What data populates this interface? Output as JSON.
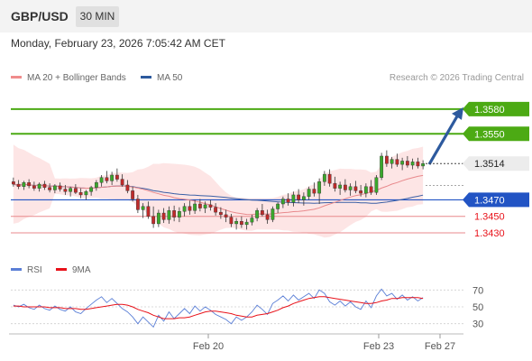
{
  "header": {
    "symbol": "GBP/USD",
    "timeframe": "30 MIN"
  },
  "datetime": "Monday, February 23, 2026 7:05:42 AM CET",
  "legend": {
    "items": [
      {
        "label": "MA 20 + Bollinger Bands",
        "color": "#f08c8c"
      },
      {
        "label": "MA 50",
        "color": "#2d5a9e"
      }
    ],
    "credit": "Research © 2026 Trading Central"
  },
  "rsi_legend": {
    "items": [
      {
        "label": "RSI",
        "color": "#5b7fd6"
      },
      {
        "label": "9MA",
        "color": "#e8121a"
      }
    ]
  },
  "chart_data": [
    {
      "type": "candlestick",
      "title": "GBP/USD 30 MIN",
      "ylim": [
        1.3395,
        1.3605
      ],
      "x_ticks": [
        "Feb 20",
        "Feb 23",
        "Feb 27"
      ],
      "current_price": {
        "label": "1.3514",
        "value": 1.3514
      },
      "levels": [
        {
          "label": "1.3580",
          "value": 1.358,
          "kind": "resistance"
        },
        {
          "label": "1.3550",
          "value": 1.355,
          "kind": "resistance"
        },
        {
          "label": "1.3470",
          "value": 1.347,
          "kind": "pivot"
        },
        {
          "label": "1.3450",
          "value": 1.345,
          "kind": "support"
        },
        {
          "label": "1.3430",
          "value": 1.343,
          "kind": "support"
        }
      ],
      "forecast": {
        "from": 1.3513,
        "to": 1.358
      },
      "candles": [
        [
          1.3492,
          1.3497,
          1.3486,
          1.3489
        ],
        [
          1.3489,
          1.3494,
          1.3483,
          1.3486
        ],
        [
          1.3486,
          1.3493,
          1.3482,
          1.3491
        ],
        [
          1.3491,
          1.3495,
          1.3484,
          1.3487
        ],
        [
          1.3487,
          1.3492,
          1.3481,
          1.3484
        ],
        [
          1.3484,
          1.3491,
          1.348,
          1.3489
        ],
        [
          1.3489,
          1.3493,
          1.3482,
          1.3485
        ],
        [
          1.3485,
          1.349,
          1.3479,
          1.3482
        ],
        [
          1.3482,
          1.3489,
          1.3478,
          1.3487
        ],
        [
          1.3487,
          1.3491,
          1.348,
          1.3483
        ],
        [
          1.3483,
          1.3488,
          1.3476,
          1.348
        ],
        [
          1.348,
          1.3486,
          1.3474,
          1.3484
        ],
        [
          1.3484,
          1.3489,
          1.3477,
          1.3479
        ],
        [
          1.3479,
          1.3484,
          1.3472,
          1.3476
        ],
        [
          1.3476,
          1.3482,
          1.347,
          1.348
        ],
        [
          1.348,
          1.3487,
          1.3475,
          1.3485
        ],
        [
          1.3485,
          1.3494,
          1.3481,
          1.3491
        ],
        [
          1.3491,
          1.35,
          1.3486,
          1.3497
        ],
        [
          1.3497,
          1.3505,
          1.349,
          1.3493
        ],
        [
          1.3493,
          1.3504,
          1.3488,
          1.35
        ],
        [
          1.35,
          1.3508,
          1.3492,
          1.3495
        ],
        [
          1.3495,
          1.3501,
          1.3486,
          1.3488
        ],
        [
          1.3488,
          1.3494,
          1.3478,
          1.3481
        ],
        [
          1.3481,
          1.3486,
          1.3468,
          1.3471
        ],
        [
          1.3471,
          1.3476,
          1.3454,
          1.3458
        ],
        [
          1.3458,
          1.3466,
          1.3448,
          1.3462
        ],
        [
          1.3462,
          1.3468,
          1.3447,
          1.345
        ],
        [
          1.345,
          1.3462,
          1.3436,
          1.3441
        ],
        [
          1.3441,
          1.3458,
          1.3437,
          1.3454
        ],
        [
          1.3454,
          1.346,
          1.3442,
          1.3446
        ],
        [
          1.3446,
          1.3462,
          1.3441,
          1.3457
        ],
        [
          1.3457,
          1.3463,
          1.3444,
          1.3449
        ],
        [
          1.3449,
          1.3461,
          1.3443,
          1.3456
        ],
        [
          1.3456,
          1.3466,
          1.345,
          1.3462
        ],
        [
          1.3462,
          1.3469,
          1.3452,
          1.3457
        ],
        [
          1.3457,
          1.347,
          1.3453,
          1.3465
        ],
        [
          1.3465,
          1.3471,
          1.3456,
          1.346
        ],
        [
          1.346,
          1.3468,
          1.3454,
          1.3464
        ],
        [
          1.3464,
          1.347,
          1.3457,
          1.3461
        ],
        [
          1.3461,
          1.3466,
          1.3451,
          1.3455
        ],
        [
          1.3455,
          1.3461,
          1.3447,
          1.3452
        ],
        [
          1.3452,
          1.3458,
          1.3443,
          1.3449
        ],
        [
          1.3449,
          1.3453,
          1.3437,
          1.3441
        ],
        [
          1.3441,
          1.3448,
          1.3434,
          1.3444
        ],
        [
          1.3444,
          1.345,
          1.3436,
          1.344
        ],
        [
          1.344,
          1.3447,
          1.3434,
          1.3443
        ],
        [
          1.3443,
          1.3452,
          1.3439,
          1.3448
        ],
        [
          1.3448,
          1.346,
          1.3444,
          1.3457
        ],
        [
          1.3457,
          1.3465,
          1.345,
          1.3452
        ],
        [
          1.3452,
          1.3458,
          1.3441,
          1.3446
        ],
        [
          1.3446,
          1.3462,
          1.3443,
          1.3459
        ],
        [
          1.3459,
          1.3467,
          1.3454,
          1.3465
        ],
        [
          1.3465,
          1.3474,
          1.346,
          1.3471
        ],
        [
          1.3471,
          1.3478,
          1.3463,
          1.3467
        ],
        [
          1.3467,
          1.348,
          1.3462,
          1.3476
        ],
        [
          1.3476,
          1.3483,
          1.3466,
          1.347
        ],
        [
          1.347,
          1.3479,
          1.3463,
          1.3474
        ],
        [
          1.3474,
          1.3486,
          1.347,
          1.3483
        ],
        [
          1.3483,
          1.3491,
          1.3474,
          1.3478
        ],
        [
          1.3478,
          1.3496,
          1.3465,
          1.3492
        ],
        [
          1.3492,
          1.3505,
          1.3487,
          1.3501
        ],
        [
          1.3501,
          1.3507,
          1.3486,
          1.349
        ],
        [
          1.349,
          1.3498,
          1.348,
          1.3484
        ],
        [
          1.3484,
          1.3492,
          1.3476,
          1.3488
        ],
        [
          1.3488,
          1.3495,
          1.3479,
          1.3482
        ],
        [
          1.3482,
          1.349,
          1.3475,
          1.3486
        ],
        [
          1.3486,
          1.3493,
          1.3478,
          1.3481
        ],
        [
          1.3481,
          1.3488,
          1.3474,
          1.3478
        ],
        [
          1.3478,
          1.349,
          1.3473,
          1.3486
        ],
        [
          1.3486,
          1.3494,
          1.3476,
          1.3479
        ],
        [
          1.3479,
          1.35,
          1.3476,
          1.3497
        ],
        [
          1.3497,
          1.3527,
          1.3494,
          1.3523
        ],
        [
          1.3523,
          1.353,
          1.351,
          1.3514
        ],
        [
          1.3514,
          1.3522,
          1.3508,
          1.3519
        ],
        [
          1.3519,
          1.3526,
          1.351,
          1.3513
        ],
        [
          1.3513,
          1.3521,
          1.3506,
          1.3517
        ],
        [
          1.3517,
          1.3523,
          1.3509,
          1.3512
        ],
        [
          1.3512,
          1.352,
          1.3507,
          1.3516
        ],
        [
          1.3516,
          1.3521,
          1.3508,
          1.3511
        ],
        [
          1.3511,
          1.3518,
          1.3507,
          1.3514
        ]
      ]
    },
    {
      "type": "line",
      "title": "RSI",
      "ylim": [
        20,
        80
      ],
      "y_ticks": [
        30,
        50,
        70
      ],
      "series": [
        {
          "name": "RSI",
          "values": [
            52,
            50,
            53,
            49,
            47,
            52,
            48,
            46,
            51,
            47,
            45,
            50,
            44,
            42,
            48,
            53,
            58,
            62,
            55,
            60,
            54,
            48,
            44,
            38,
            30,
            38,
            32,
            26,
            40,
            33,
            44,
            36,
            42,
            48,
            42,
            51,
            45,
            50,
            46,
            41,
            38,
            35,
            30,
            38,
            34,
            38,
            44,
            52,
            47,
            41,
            54,
            58,
            63,
            57,
            64,
            58,
            62,
            66,
            60,
            70,
            66,
            56,
            52,
            57,
            51,
            56,
            50,
            47,
            57,
            49,
            63,
            71,
            63,
            66,
            59,
            64,
            58,
            62,
            57,
            61
          ]
        },
        {
          "name": "9MA",
          "values": [
            51,
            51,
            50,
            50,
            50,
            50,
            50,
            49,
            49,
            49,
            48,
            48,
            48,
            47,
            47,
            48,
            49,
            50,
            51,
            52,
            53,
            53,
            52,
            50,
            47,
            45,
            43,
            40,
            38,
            36,
            36,
            36,
            37,
            37,
            38,
            40,
            42,
            44,
            45,
            45,
            44,
            43,
            42,
            40,
            39,
            38,
            38,
            40,
            41,
            42,
            44,
            46,
            49,
            51,
            54,
            56,
            58,
            60,
            61,
            62,
            62,
            61,
            60,
            59,
            58,
            57,
            56,
            55,
            54,
            54,
            55,
            57,
            58,
            60,
            60,
            61,
            61,
            61,
            61,
            60
          ]
        }
      ]
    }
  ]
}
